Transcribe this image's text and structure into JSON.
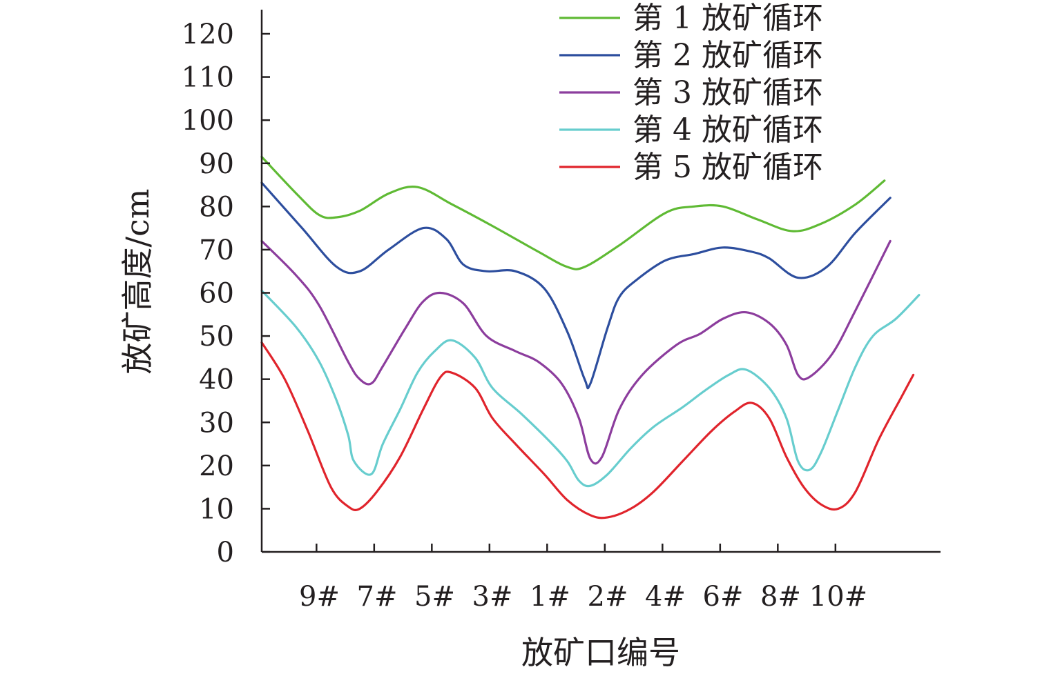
{
  "chart_data": {
    "type": "line",
    "title": "",
    "xlabel": "放矿口编号",
    "ylabel": "放矿高度/cm",
    "xlim": [
      0,
      11
    ],
    "ylim": [
      0,
      120
    ],
    "y_ticks": [
      0,
      10,
      20,
      30,
      40,
      50,
      60,
      70,
      80,
      90,
      100,
      110,
      120
    ],
    "categories": [
      {
        "label": "9#",
        "x": 1
      },
      {
        "label": "7#",
        "x": 2
      },
      {
        "label": "5#",
        "x": 3
      },
      {
        "label": "3#",
        "x": 4
      },
      {
        "label": "1#",
        "x": 5
      },
      {
        "label": "2#",
        "x": 6
      },
      {
        "label": "4#",
        "x": 7
      },
      {
        "label": "6#",
        "x": 8
      },
      {
        "label": "8#",
        "x": 9
      },
      {
        "label": "10#",
        "x": 10
      }
    ],
    "x_tick_marks": [
      0.95,
      1.95,
      2.95,
      3.95,
      4.95,
      5.95,
      6.95,
      7.95,
      8.95,
      9.95
    ],
    "legend_position": "top-right",
    "series": [
      {
        "name": "第 1 放矿循环",
        "color": "#5fba34",
        "points": [
          [
            0,
            91.5
          ],
          [
            0.6,
            83
          ],
          [
            1,
            78
          ],
          [
            1.3,
            77.5
          ],
          [
            1.7,
            79
          ],
          [
            2.2,
            83
          ],
          [
            2.7,
            84.5
          ],
          [
            3.3,
            80.5
          ],
          [
            4,
            75.5
          ],
          [
            4.8,
            69.5
          ],
          [
            5.3,
            66
          ],
          [
            5.6,
            66
          ],
          [
            6.2,
            71
          ],
          [
            7,
            78.5
          ],
          [
            7.5,
            80
          ],
          [
            8,
            80
          ],
          [
            8.6,
            77
          ],
          [
            9.2,
            74.3
          ],
          [
            9.7,
            76
          ],
          [
            10.3,
            80.5
          ],
          [
            10.8,
            86
          ]
        ]
      },
      {
        "name": "第 2 放矿循环",
        "color": "#2d4e9e",
        "points": [
          [
            0,
            85.5
          ],
          [
            0.7,
            75
          ],
          [
            1.3,
            66
          ],
          [
            1.7,
            65
          ],
          [
            2.2,
            70
          ],
          [
            2.8,
            75
          ],
          [
            3.2,
            72.5
          ],
          [
            3.5,
            66.5
          ],
          [
            3.9,
            65
          ],
          [
            4.4,
            65
          ],
          [
            4.9,
            61
          ],
          [
            5.3,
            51
          ],
          [
            5.6,
            40
          ],
          [
            5.7,
            39
          ],
          [
            6,
            52
          ],
          [
            6.2,
            59
          ],
          [
            6.5,
            63
          ],
          [
            7,
            67.5
          ],
          [
            7.5,
            69
          ],
          [
            8,
            70.5
          ],
          [
            8.5,
            69.5
          ],
          [
            8.8,
            68
          ],
          [
            9.3,
            63.5
          ],
          [
            9.8,
            66
          ],
          [
            10.3,
            74
          ],
          [
            10.9,
            82
          ]
        ]
      },
      {
        "name": "第 3 放矿循环",
        "color": "#8c3d9d",
        "points": [
          [
            0,
            72
          ],
          [
            0.6,
            64
          ],
          [
            1,
            57
          ],
          [
            1.5,
            44
          ],
          [
            1.7,
            40
          ],
          [
            1.9,
            39
          ],
          [
            2.1,
            43
          ],
          [
            2.5,
            52
          ],
          [
            2.8,
            58
          ],
          [
            3.1,
            60
          ],
          [
            3.5,
            57.5
          ],
          [
            3.9,
            50
          ],
          [
            4.4,
            46.5
          ],
          [
            4.8,
            44
          ],
          [
            5.2,
            39
          ],
          [
            5.5,
            31
          ],
          [
            5.7,
            21.5
          ],
          [
            5.9,
            22
          ],
          [
            6.2,
            33
          ],
          [
            6.6,
            41
          ],
          [
            7.2,
            48
          ],
          [
            7.6,
            50.5
          ],
          [
            8,
            54
          ],
          [
            8.4,
            55.5
          ],
          [
            8.8,
            53
          ],
          [
            9.1,
            48
          ],
          [
            9.3,
            41
          ],
          [
            9.5,
            40.5
          ],
          [
            9.9,
            46
          ],
          [
            10.3,
            56
          ],
          [
            10.9,
            72
          ]
        ]
      },
      {
        "name": "第 4 放矿循环",
        "color": "#67cdce",
        "points": [
          [
            0,
            60.5
          ],
          [
            0.6,
            52
          ],
          [
            1,
            44
          ],
          [
            1.3,
            35
          ],
          [
            1.5,
            27
          ],
          [
            1.6,
            21
          ],
          [
            1.9,
            18
          ],
          [
            2.1,
            25
          ],
          [
            2.4,
            33
          ],
          [
            2.7,
            41.5
          ],
          [
            3,
            46.5
          ],
          [
            3.3,
            49
          ],
          [
            3.7,
            45
          ],
          [
            4,
            38
          ],
          [
            4.5,
            32
          ],
          [
            5,
            25.5
          ],
          [
            5.3,
            21
          ],
          [
            5.5,
            16.5
          ],
          [
            5.7,
            15.3
          ],
          [
            6,
            18
          ],
          [
            6.4,
            24
          ],
          [
            6.8,
            29
          ],
          [
            7.3,
            33.5
          ],
          [
            7.7,
            37.5
          ],
          [
            8.1,
            41
          ],
          [
            8.4,
            42.2
          ],
          [
            8.8,
            38
          ],
          [
            9.1,
            31
          ],
          [
            9.3,
            21
          ],
          [
            9.5,
            19
          ],
          [
            9.7,
            23
          ],
          [
            10,
            33
          ],
          [
            10.3,
            43
          ],
          [
            10.6,
            50
          ],
          [
            11,
            54
          ],
          [
            11.4,
            59.5
          ]
        ]
      },
      {
        "name": "第 5 放矿循环",
        "color": "#e0242c",
        "points": [
          [
            0,
            48.5
          ],
          [
            0.4,
            40
          ],
          [
            0.8,
            28
          ],
          [
            1.2,
            15
          ],
          [
            1.5,
            10.5
          ],
          [
            1.7,
            10
          ],
          [
            2,
            14
          ],
          [
            2.4,
            22
          ],
          [
            2.8,
            33
          ],
          [
            3.1,
            40.5
          ],
          [
            3.3,
            41.5
          ],
          [
            3.7,
            38
          ],
          [
            4,
            31
          ],
          [
            4.4,
            25
          ],
          [
            4.9,
            18
          ],
          [
            5.3,
            12
          ],
          [
            5.7,
            8.5
          ],
          [
            6,
            8
          ],
          [
            6.4,
            10
          ],
          [
            6.8,
            14
          ],
          [
            7.3,
            21
          ],
          [
            7.8,
            28
          ],
          [
            8.2,
            32.5
          ],
          [
            8.5,
            34.5
          ],
          [
            8.8,
            31
          ],
          [
            9.1,
            22
          ],
          [
            9.4,
            15
          ],
          [
            9.7,
            11
          ],
          [
            10,
            10
          ],
          [
            10.3,
            14
          ],
          [
            10.7,
            26
          ],
          [
            11.1,
            36
          ],
          [
            11.3,
            41
          ]
        ]
      }
    ]
  }
}
